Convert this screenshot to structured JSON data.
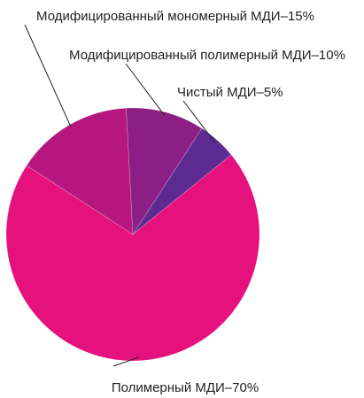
{
  "chart_data": {
    "type": "pie",
    "title": "",
    "slices": [
      {
        "label": "Чистый МДИ–5%",
        "value": 5,
        "color": "#5c2a91"
      },
      {
        "label": "Полимерный МДИ–70%",
        "value": 70,
        "color": "#e5127d"
      },
      {
        "label": "Модифицированный мономерный МДИ–15%",
        "value": 15,
        "color": "#b5177f"
      },
      {
        "label": "Модифицированный полимерный МДИ–10%",
        "value": 10,
        "color": "#8c1f86"
      }
    ]
  }
}
